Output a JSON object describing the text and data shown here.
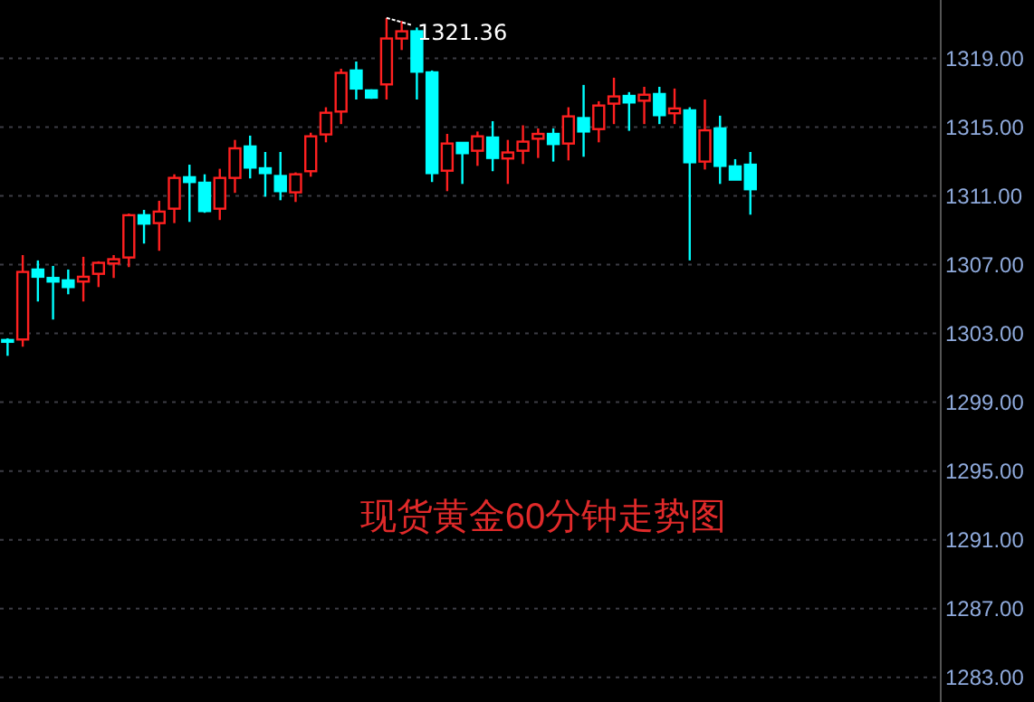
{
  "chart_data": {
    "type": "candlestick",
    "title": "现货黄金60分钟走势图",
    "categories": [
      null,
      null,
      null,
      null,
      null,
      null,
      null,
      null,
      null,
      null,
      null,
      null,
      null,
      null,
      null,
      null,
      null,
      null,
      null,
      null,
      null,
      null,
      null,
      null,
      null,
      null,
      null,
      null,
      null,
      null,
      null,
      null,
      null,
      null,
      null,
      null,
      null,
      null,
      null,
      null,
      null,
      null,
      null,
      null,
      null,
      null,
      null,
      null,
      null,
      null,
      null,
      null,
      null,
      null,
      null,
      null,
      null,
      null,
      null,
      null,
      null,
      null
    ],
    "ohlc": [
      [
        1302.62,
        1302.72,
        1301.7,
        1302.55
      ],
      [
        1302.65,
        1307.56,
        1302.23,
        1306.58
      ],
      [
        1306.72,
        1307.25,
        1304.86,
        1306.3
      ],
      [
        1306.23,
        1306.93,
        1303.81,
        1306.02
      ],
      [
        1306.09,
        1306.72,
        1305.28,
        1305.7
      ],
      [
        1306.02,
        1307.46,
        1304.86,
        1306.3
      ],
      [
        1306.47,
        1307.2,
        1305.7,
        1307.11
      ],
      [
        1307.07,
        1307.56,
        1306.23,
        1307.32
      ],
      [
        1307.42,
        1309.98,
        1306.86,
        1309.88
      ],
      [
        1309.88,
        1310.19,
        1308.23,
        1309.39
      ],
      [
        1309.42,
        1310.72,
        1307.81,
        1310.09
      ],
      [
        1310.26,
        1312.26,
        1309.42,
        1312.05
      ],
      [
        1312.09,
        1312.82,
        1309.49,
        1311.81
      ],
      [
        1311.77,
        1312.26,
        1310.02,
        1310.12
      ],
      [
        1310.26,
        1312.58,
        1309.6,
        1312.05
      ],
      [
        1312.05,
        1314.26,
        1311.18,
        1313.77
      ],
      [
        1313.88,
        1314.51,
        1312.02,
        1312.65
      ],
      [
        1312.61,
        1313.56,
        1310.96,
        1312.33
      ],
      [
        1312.16,
        1313.56,
        1310.75,
        1311.28
      ],
      [
        1311.21,
        1312.37,
        1310.65,
        1312.26
      ],
      [
        1312.44,
        1314.68,
        1312.12,
        1314.47
      ],
      [
        1314.58,
        1316.16,
        1314.12,
        1315.84
      ],
      [
        1315.91,
        1318.4,
        1315.18,
        1318.16
      ],
      [
        1318.3,
        1318.82,
        1316.61,
        1317.25
      ],
      [
        1317.14,
        1317.2,
        1316.65,
        1316.72
      ],
      [
        1317.49,
        1321.36,
        1316.61,
        1320.16
      ],
      [
        1320.16,
        1321.18,
        1319.49,
        1320.58
      ],
      [
        1320.58,
        1320.8,
        1316.61,
        1318.23
      ],
      [
        1318.19,
        1318.3,
        1311.81,
        1312.33
      ],
      [
        1312.47,
        1314.61,
        1311.28,
        1314.05
      ],
      [
        1314.09,
        1314.09,
        1311.7,
        1313.49
      ],
      [
        1313.63,
        1314.75,
        1312.75,
        1314.47
      ],
      [
        1314.4,
        1315.35,
        1312.44,
        1313.21
      ],
      [
        1313.18,
        1314.26,
        1311.7,
        1313.53
      ],
      [
        1313.63,
        1315.11,
        1312.86,
        1314.16
      ],
      [
        1314.33,
        1314.93,
        1313.21,
        1314.61
      ],
      [
        1314.61,
        1314.93,
        1313.0,
        1314.02
      ],
      [
        1314.05,
        1316.16,
        1313.07,
        1315.63
      ],
      [
        1315.53,
        1317.46,
        1313.28,
        1314.75
      ],
      [
        1314.89,
        1316.51,
        1314.12,
        1316.26
      ],
      [
        1316.37,
        1317.88,
        1315.18,
        1316.79
      ],
      [
        1316.82,
        1317.04,
        1314.79,
        1316.44
      ],
      [
        1316.54,
        1317.35,
        1315.18,
        1316.89
      ],
      [
        1316.93,
        1317.35,
        1315.18,
        1315.7
      ],
      [
        1315.81,
        1317.25,
        1315.18,
        1316.09
      ],
      [
        1315.98,
        1316.16,
        1307.25,
        1312.96
      ],
      [
        1313.0,
        1316.61,
        1312.54,
        1314.82
      ],
      [
        1314.93,
        1315.67,
        1311.7,
        1312.75
      ],
      [
        1312.72,
        1313.14,
        1311.95,
        1311.95
      ],
      [
        1312.82,
        1313.56,
        1309.91,
        1311.39
      ],
      null,
      null,
      null,
      null,
      null,
      null,
      null,
      null,
      null,
      null,
      null,
      null
    ],
    "colors": [
      "#00ffff",
      "#ff2020",
      "#00ffff",
      "#00ffff",
      "#00ffff",
      "#ff2020",
      "#ff2020",
      "#ff2020",
      "#ff2020",
      "#00ffff",
      "#ff2020",
      "#ff2020",
      "#00ffff",
      "#00ffff",
      "#ff2020",
      "#ff2020",
      "#00ffff",
      "#00ffff",
      "#00ffff",
      "#ff2020",
      "#ff2020",
      "#ff2020",
      "#ff2020",
      "#00ffff",
      "#00ffff",
      "#ff2020",
      "#ff2020",
      "#00ffff",
      "#00ffff",
      "#ff2020",
      "#00ffff",
      "#ff2020",
      "#00ffff",
      "#ff2020",
      "#ff2020",
      "#ff2020",
      "#00ffff",
      "#ff2020",
      "#00ffff",
      "#ff2020",
      "#ff2020",
      "#00ffff",
      "#ff2020",
      "#00ffff",
      "#ff2020",
      "#00ffff",
      "#ff2020",
      "#00ffff",
      "#00ffff",
      "#00ffff",
      null,
      null,
      null,
      null,
      null,
      null,
      null,
      null,
      null,
      null,
      null,
      null
    ],
    "ylim": [
      1281.56,
      1322.4
    ],
    "yticks": [
      {
        "value": 1283,
        "label": "1283.00"
      },
      {
        "value": 1287,
        "label": "1287.00"
      },
      {
        "value": 1291,
        "label": "1291.00"
      },
      {
        "value": 1295,
        "label": "1295.00"
      },
      {
        "value": 1299,
        "label": "1299.00"
      },
      {
        "value": 1303,
        "label": "1303.00"
      },
      {
        "value": 1307,
        "label": "1307.00"
      },
      {
        "value": 1311,
        "label": "1311.00"
      },
      {
        "value": 1315,
        "label": "1315.00"
      },
      {
        "value": 1319,
        "label": "1319.00"
      }
    ],
    "grid": "y",
    "annotations": [
      "1321.36"
    ]
  }
}
